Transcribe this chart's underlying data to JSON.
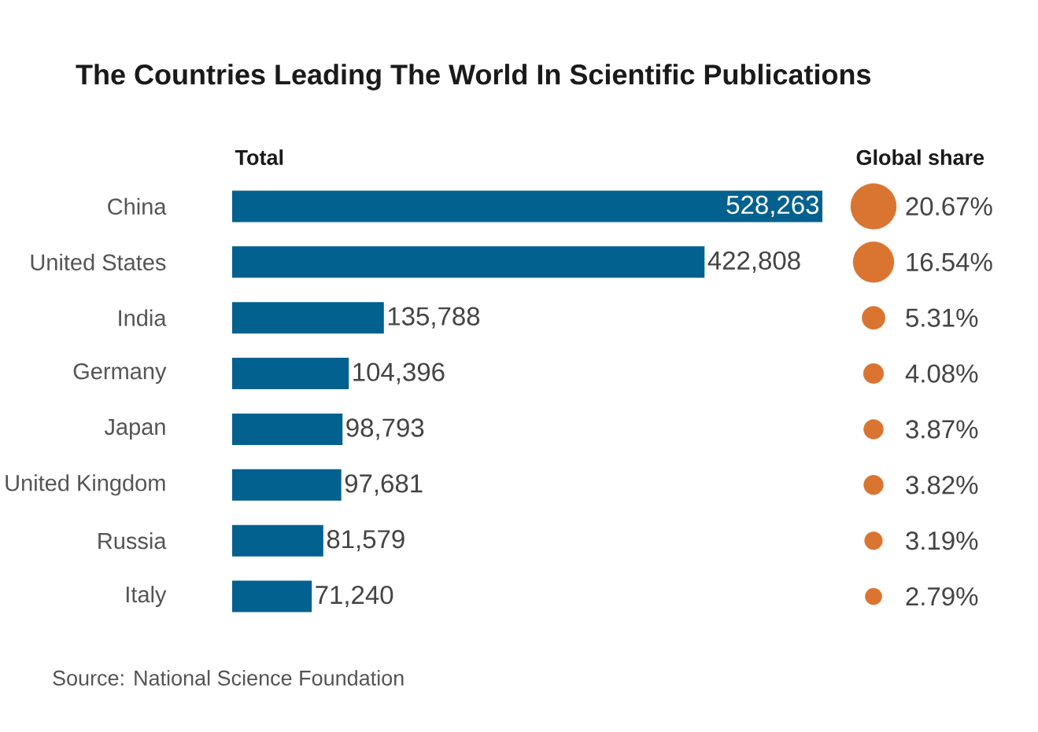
{
  "chart_data": [
    {
      "type": "bar",
      "orientation": "horizontal",
      "title": "The Countries Leading The World In Scientific Publications",
      "subtitle": "Total",
      "categories": [
        "China",
        "United States",
        "India",
        "Germany",
        "Japan",
        "United Kingdom",
        "Russia",
        "Italy"
      ],
      "values": [
        528263,
        422808,
        135788,
        104396,
        98793,
        97681,
        81579,
        71240
      ],
      "value_labels": [
        "528,263",
        "422,808",
        "135,788",
        "104,396",
        "98,793",
        "97,681",
        "81,579",
        "71,240"
      ],
      "color": "#03618f",
      "annotations": [
        "Source: National Science Foundation"
      ]
    },
    {
      "type": "other",
      "title": "Global share",
      "categories": [
        null,
        null,
        null,
        null,
        null,
        null,
        null,
        null
      ],
      "values": [
        20.67,
        16.54,
        5.31,
        4.08,
        3.87,
        3.82,
        3.19,
        2.79
      ],
      "value_labels": [
        "20.67%",
        "16.54%",
        "5.31%",
        "4.08%",
        "3.87%",
        "3.82%",
        "3.19%",
        "2.79%"
      ],
      "color": "#d97431"
    }
  ]
}
